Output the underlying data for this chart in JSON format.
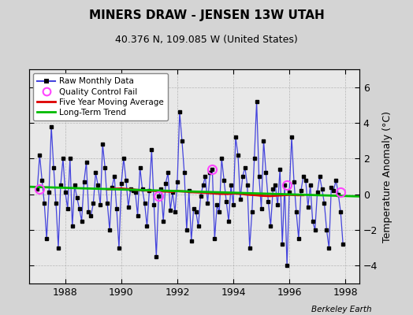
{
  "title": "MINERS DRAW - JENSEN 13W UTAH",
  "subtitle": "40.376 N, 109.085 W (United States)",
  "ylabel": "Temperature Anomaly (°C)",
  "attribution": "Berkeley Earth",
  "background_color": "#d4d4d4",
  "plot_bg_color": "#e8e8e8",
  "ylim": [
    -5.0,
    7.0
  ],
  "yticks": [
    -4,
    -2,
    0,
    2,
    4,
    6
  ],
  "xlim": [
    1986.7,
    1998.5
  ],
  "xticks": [
    1988,
    1990,
    1992,
    1994,
    1996,
    1998
  ],
  "raw_color": "#4444dd",
  "marker_color": "#000000",
  "moving_avg_color": "#dd0000",
  "trend_color": "#00bb00",
  "qc_fail_color": "#ff44ff",
  "raw_data_x": [
    1987.0,
    1987.083,
    1987.167,
    1987.25,
    1987.333,
    1987.417,
    1987.5,
    1987.583,
    1987.667,
    1987.75,
    1987.833,
    1987.917,
    1988.0,
    1988.083,
    1988.167,
    1988.25,
    1988.333,
    1988.417,
    1988.5,
    1988.583,
    1988.667,
    1988.75,
    1988.833,
    1988.917,
    1989.0,
    1989.083,
    1989.167,
    1989.25,
    1989.333,
    1989.417,
    1989.5,
    1989.583,
    1989.667,
    1989.75,
    1989.833,
    1989.917,
    1990.0,
    1990.083,
    1990.167,
    1990.25,
    1990.333,
    1990.417,
    1990.5,
    1990.583,
    1990.667,
    1990.75,
    1990.833,
    1990.917,
    1991.0,
    1991.083,
    1991.167,
    1991.25,
    1991.333,
    1991.417,
    1991.5,
    1991.583,
    1991.667,
    1991.75,
    1991.833,
    1991.917,
    1992.0,
    1992.083,
    1992.167,
    1992.25,
    1992.333,
    1992.417,
    1992.5,
    1992.583,
    1992.667,
    1992.75,
    1992.833,
    1992.917,
    1993.0,
    1993.083,
    1993.167,
    1993.25,
    1993.333,
    1993.417,
    1993.5,
    1993.583,
    1993.667,
    1993.75,
    1993.833,
    1993.917,
    1994.0,
    1994.083,
    1994.167,
    1994.25,
    1994.333,
    1994.417,
    1994.5,
    1994.583,
    1994.667,
    1994.75,
    1994.833,
    1994.917,
    1995.0,
    1995.083,
    1995.167,
    1995.25,
    1995.333,
    1995.417,
    1995.5,
    1995.583,
    1995.667,
    1995.75,
    1995.833,
    1995.917,
    1996.0,
    1996.083,
    1996.167,
    1996.25,
    1996.333,
    1996.417,
    1996.5,
    1996.583,
    1996.667,
    1996.75,
    1996.833,
    1996.917,
    1997.0,
    1997.083,
    1997.167,
    1997.25,
    1997.333,
    1997.417,
    1997.5,
    1997.583,
    1997.667,
    1997.75,
    1997.833,
    1997.917
  ],
  "raw_data_y": [
    0.3,
    2.2,
    0.8,
    -0.5,
    -2.5,
    0.1,
    3.8,
    1.5,
    -0.5,
    -3.0,
    0.5,
    2.0,
    0.1,
    -0.8,
    2.0,
    -1.8,
    0.5,
    -0.2,
    -0.8,
    -1.5,
    0.7,
    1.8,
    -1.0,
    -1.2,
    -0.5,
    1.2,
    0.5,
    -0.6,
    2.8,
    1.5,
    -0.5,
    -2.0,
    0.4,
    1.0,
    -0.8,
    -3.0,
    0.6,
    2.0,
    0.8,
    -0.7,
    0.3,
    0.2,
    0.1,
    -1.2,
    1.5,
    0.3,
    -0.5,
    -1.8,
    0.2,
    2.5,
    -0.6,
    -3.5,
    -0.1,
    0.3,
    -1.5,
    0.6,
    1.2,
    -0.9,
    0.1,
    -1.0,
    0.7,
    4.6,
    3.0,
    1.2,
    -2.0,
    0.2,
    -2.6,
    -0.8,
    -1.0,
    -1.8,
    -0.1,
    0.5,
    1.0,
    -0.5,
    1.2,
    1.4,
    -2.5,
    -0.6,
    -1.0,
    2.0,
    0.8,
    -0.4,
    -1.5,
    0.5,
    -0.6,
    3.2,
    2.2,
    -0.3,
    1.0,
    1.5,
    0.5,
    -3.0,
    -1.0,
    2.0,
    5.2,
    1.0,
    -0.8,
    3.0,
    1.2,
    -0.4,
    -1.8,
    0.3,
    0.5,
    -0.6,
    1.4,
    -2.8,
    0.5,
    -4.0,
    0.1,
    3.2,
    0.7,
    -1.0,
    -2.5,
    0.2,
    1.0,
    0.8,
    -0.7,
    0.5,
    -1.5,
    -2.0,
    0.1,
    1.0,
    0.3,
    -0.5,
    -2.0,
    -3.0,
    0.4,
    0.2,
    0.8,
    0.0,
    -1.0,
    -2.8
  ],
  "qc_fail_x": [
    1987.083,
    1991.333,
    1993.25,
    1995.917,
    1997.833
  ],
  "qc_fail_y": [
    0.3,
    -0.1,
    1.4,
    0.5,
    0.1
  ],
  "moving_avg_x": [
    1989.5,
    1989.7,
    1990.0,
    1990.3,
    1990.5,
    1990.8,
    1991.0,
    1991.3,
    1991.5,
    1991.8,
    1992.0,
    1992.3,
    1992.5,
    1992.8,
    1993.0,
    1993.3,
    1993.5,
    1993.8,
    1994.0,
    1994.3,
    1994.5,
    1994.8,
    1995.0,
    1995.3,
    1995.5,
    1995.8,
    1996.0,
    1996.3,
    1996.5
  ],
  "moving_avg_y": [
    0.28,
    0.3,
    0.32,
    0.28,
    0.25,
    0.22,
    0.2,
    0.18,
    0.16,
    0.14,
    0.18,
    0.15,
    0.12,
    0.1,
    0.08,
    0.05,
    0.03,
    0.02,
    0.05,
    0.02,
    -0.02,
    -0.05,
    -0.08,
    -0.1,
    -0.08,
    -0.05,
    -0.03,
    -0.05,
    -0.05
  ],
  "trend_x": [
    1986.7,
    1998.5
  ],
  "trend_y": [
    0.42,
    -0.12
  ]
}
